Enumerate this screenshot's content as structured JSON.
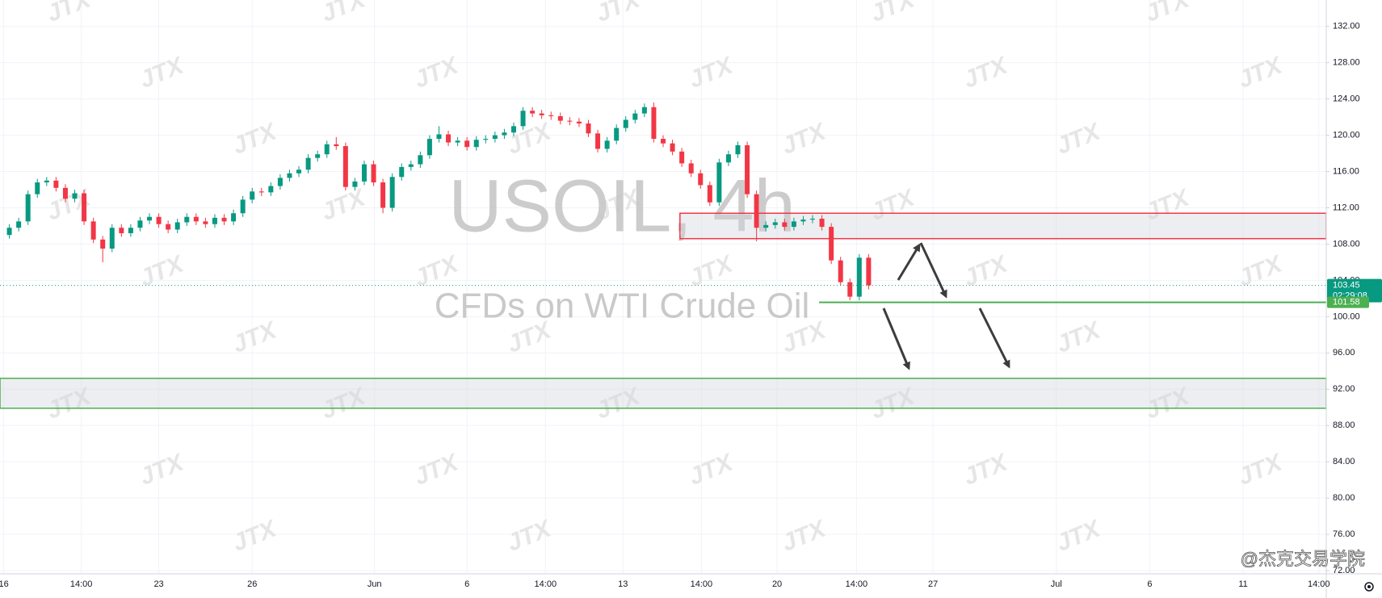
{
  "chart_data": {
    "type": "candlestick",
    "title": "USOIL, 4h",
    "subtitle": "CFDs on WTI Crude Oil",
    "watermark": "JTX",
    "credit": "@杰克交易学院",
    "up_color": "#089981",
    "down_color": "#f23645",
    "grid": true,
    "xlim": [
      0,
      142
    ],
    "ylim": [
      71.65,
      134.91
    ],
    "xticks": [
      {
        "value": 0.4,
        "label": "16"
      },
      {
        "value": 8.7,
        "label": "14:00"
      },
      {
        "value": 17,
        "label": "23"
      },
      {
        "value": 27,
        "label": "26"
      },
      {
        "value": 40.1,
        "label": "Jun"
      },
      {
        "value": 50,
        "label": "6"
      },
      {
        "value": 58.4,
        "label": "14:00"
      },
      {
        "value": 66.7,
        "label": "13"
      },
      {
        "value": 75.1,
        "label": "14:00"
      },
      {
        "value": 83.2,
        "label": "20"
      },
      {
        "value": 91.7,
        "label": "14:00"
      },
      {
        "value": 99.9,
        "label": "27"
      },
      {
        "value": 113.1,
        "label": "Jul"
      },
      {
        "value": 123.1,
        "label": "6"
      },
      {
        "value": 133.1,
        "label": "11"
      },
      {
        "value": 141.2,
        "label": "14:00"
      }
    ],
    "yticks": [
      {
        "value": 72,
        "label": "72.00"
      },
      {
        "value": 76,
        "label": "76.00"
      },
      {
        "value": 80,
        "label": "80.00"
      },
      {
        "value": 84,
        "label": "84.00"
      },
      {
        "value": 88,
        "label": "88.00"
      },
      {
        "value": 92,
        "label": "92.00"
      },
      {
        "value": 96,
        "label": "96.00"
      },
      {
        "value": 100,
        "label": "100.00"
      },
      {
        "value": 104,
        "label": "104.00"
      },
      {
        "value": 108,
        "label": "108.00"
      },
      {
        "value": 112,
        "label": "112.00"
      },
      {
        "value": 116,
        "label": "116.00"
      },
      {
        "value": 120,
        "label": "120.00"
      },
      {
        "value": 124,
        "label": "124.00"
      },
      {
        "value": 128,
        "label": "128.00"
      },
      {
        "value": 132,
        "label": "132.00"
      }
    ],
    "x": [
      1,
      2,
      3,
      4,
      5,
      6,
      7,
      8,
      9,
      10,
      11,
      12,
      13,
      14,
      15,
      16,
      17,
      18,
      19,
      20,
      21,
      22,
      23,
      24,
      25,
      26,
      27,
      28,
      29,
      30,
      31,
      32,
      33,
      34,
      35,
      36,
      37,
      38,
      39,
      40,
      41,
      42,
      43,
      44,
      45,
      46,
      47,
      48,
      49,
      50,
      51,
      52,
      53,
      54,
      55,
      56,
      57,
      58,
      59,
      60,
      61,
      62,
      63,
      64,
      65,
      66,
      67,
      68,
      69,
      70,
      71,
      72,
      73,
      74,
      75,
      76,
      77,
      78,
      79,
      80,
      81,
      82,
      83,
      84,
      85,
      86,
      87,
      88,
      89,
      90,
      91,
      92,
      93
    ],
    "open": [
      109.0,
      109.8,
      110.5,
      113.5,
      114.8,
      115.0,
      114.2,
      113.0,
      113.6,
      110.5,
      108.5,
      107.5,
      109.8,
      109.2,
      109.8,
      110.6,
      111.0,
      110.2,
      109.6,
      110.4,
      111.0,
      110.5,
      110.2,
      110.9,
      110.5,
      111.4,
      112.9,
      113.8,
      113.7,
      114.4,
      115.3,
      115.8,
      116.2,
      117.5,
      117.9,
      119.0,
      118.8,
      114.3,
      114.9,
      116.8,
      114.8,
      112.0,
      115.4,
      116.5,
      116.8,
      117.8,
      119.6,
      120.1,
      119.2,
      119.4,
      118.7,
      119.5,
      119.6,
      120.0,
      120.3,
      121.0,
      122.7,
      122.4,
      122.2,
      122.1,
      121.6,
      121.5,
      121.3,
      120.2,
      118.5,
      119.4,
      120.8,
      121.7,
      122.4,
      123.1,
      119.6,
      119.1,
      118.2,
      116.9,
      115.8,
      114.5,
      112.6,
      117.0,
      117.9,
      118.9,
      113.5,
      109.8,
      110.1,
      110.4,
      109.9,
      110.5,
      110.7,
      110.8,
      109.9,
      106.2,
      103.8,
      102.2,
      106.5
    ],
    "high": [
      110.2,
      110.9,
      113.9,
      115.2,
      115.4,
      115.4,
      114.6,
      114.0,
      114.0,
      110.9,
      108.9,
      110.2,
      110.2,
      110.2,
      111.0,
      111.4,
      111.4,
      110.6,
      110.8,
      111.4,
      111.4,
      110.9,
      111.3,
      111.3,
      111.8,
      113.3,
      114.2,
      114.2,
      114.8,
      115.7,
      116.2,
      116.6,
      117.9,
      118.3,
      119.4,
      119.8,
      119.2,
      115.3,
      117.2,
      117.2,
      115.2,
      115.8,
      116.9,
      117.2,
      118.2,
      120.0,
      121.0,
      120.5,
      119.8,
      119.8,
      119.9,
      120.0,
      120.4,
      120.7,
      121.4,
      123.1,
      123.1,
      122.8,
      122.6,
      122.5,
      122.0,
      121.9,
      121.7,
      120.6,
      119.8,
      121.2,
      122.1,
      122.8,
      123.5,
      123.6,
      120.0,
      119.5,
      118.6,
      117.3,
      116.2,
      114.9,
      117.4,
      118.3,
      119.3,
      119.3,
      113.9,
      110.5,
      110.8,
      110.8,
      110.9,
      111.1,
      111.2,
      111.2,
      110.3,
      106.6,
      104.2,
      106.9,
      106.9
    ],
    "low": [
      108.6,
      109.4,
      110.1,
      113.1,
      114.4,
      113.8,
      112.6,
      112.6,
      110.1,
      108.1,
      106.0,
      107.1,
      108.8,
      108.8,
      109.4,
      110.2,
      109.8,
      109.2,
      109.2,
      110.0,
      110.1,
      109.8,
      109.8,
      110.1,
      110.1,
      111.0,
      112.5,
      113.3,
      113.3,
      114.0,
      114.9,
      115.4,
      115.8,
      117.1,
      117.5,
      118.4,
      113.9,
      113.9,
      114.5,
      114.4,
      111.4,
      111.6,
      115.0,
      116.1,
      116.4,
      117.4,
      119.2,
      118.8,
      118.8,
      118.3,
      118.3,
      119.1,
      119.2,
      119.6,
      119.9,
      120.6,
      122.0,
      121.8,
      121.7,
      121.2,
      121.1,
      120.9,
      119.8,
      118.1,
      118.1,
      119.0,
      120.4,
      121.3,
      122.0,
      119.2,
      118.7,
      117.8,
      116.5,
      115.4,
      114.1,
      112.2,
      112.2,
      116.6,
      117.5,
      113.1,
      108.3,
      109.4,
      109.7,
      109.5,
      109.5,
      110.1,
      110.3,
      109.5,
      105.8,
      103.4,
      101.8,
      101.8,
      103.0
    ],
    "close": [
      109.8,
      110.5,
      113.5,
      114.8,
      115.0,
      114.2,
      113.0,
      113.6,
      110.5,
      108.5,
      107.5,
      109.8,
      109.2,
      109.8,
      110.6,
      111.0,
      110.2,
      109.6,
      110.4,
      111.0,
      110.5,
      110.2,
      110.9,
      110.5,
      111.4,
      112.9,
      113.8,
      113.7,
      114.4,
      115.3,
      115.8,
      116.2,
      117.5,
      117.9,
      119.0,
      118.8,
      114.3,
      114.9,
      116.8,
      114.8,
      112.0,
      115.4,
      116.5,
      116.8,
      117.8,
      119.6,
      120.1,
      119.2,
      119.4,
      118.7,
      119.5,
      119.6,
      120.0,
      120.3,
      121.0,
      122.7,
      122.4,
      122.2,
      122.1,
      121.6,
      121.5,
      121.3,
      120.2,
      118.5,
      119.4,
      120.8,
      121.7,
      122.4,
      123.1,
      119.6,
      119.1,
      118.2,
      116.9,
      115.8,
      114.5,
      112.6,
      117.0,
      117.9,
      118.9,
      113.5,
      109.8,
      110.1,
      110.4,
      109.9,
      110.5,
      110.7,
      110.8,
      109.9,
      106.2,
      103.8,
      102.2,
      106.5,
      103.45
    ],
    "zones": [
      {
        "high": 111.4,
        "low": 108.6,
        "x_start": 72.8,
        "color": "#f23645"
      },
      {
        "high": 93.2,
        "low": 89.9,
        "x_start": 0,
        "color": "#4caf50"
      }
    ],
    "levels": [
      {
        "value": 101.58,
        "label": "101.58",
        "x_start": 87.7,
        "color": "#4caf50"
      }
    ],
    "last_price": {
      "value": 103.45,
      "label": "103.45",
      "countdown": "02:29:08",
      "color": "#089981"
    }
  }
}
